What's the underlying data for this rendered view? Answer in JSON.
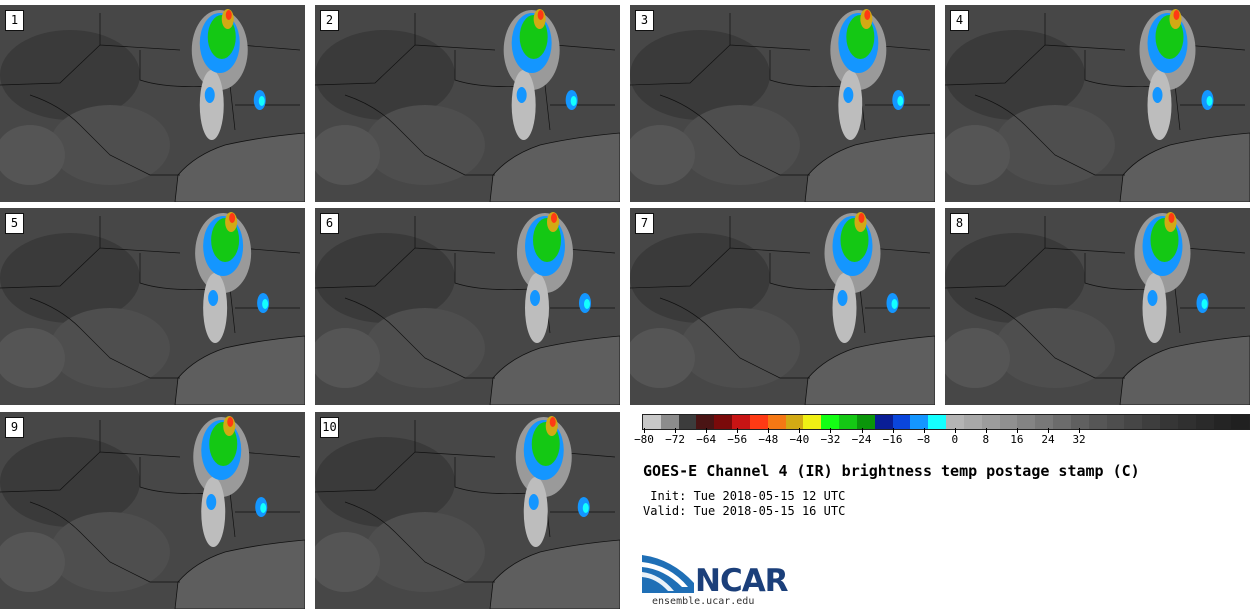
{
  "panels": [
    {
      "label": "1"
    },
    {
      "label": "2"
    },
    {
      "label": "3"
    },
    {
      "label": "4"
    },
    {
      "label": "5"
    },
    {
      "label": "6"
    },
    {
      "label": "7"
    },
    {
      "label": "8"
    },
    {
      "label": "9"
    },
    {
      "label": "10"
    }
  ],
  "colorbar": {
    "colors": [
      "#c8c8c8",
      "#8c8c8c",
      "#3c3c3c",
      "#4a1414",
      "#7a0a0a",
      "#c81414",
      "#ff3a14",
      "#f57814",
      "#d2aa14",
      "#f0f014",
      "#14ff14",
      "#14c814",
      "#0a960a",
      "#0a1e96",
      "#0a46dc",
      "#1496ff",
      "#14ffff",
      "#b4b4b4",
      "#a8a8a8",
      "#9c9c9c",
      "#909090",
      "#848484",
      "#787878",
      "#6c6c6c",
      "#606060",
      "#565656",
      "#4e4e4e",
      "#464646",
      "#3e3e3e",
      "#363636",
      "#303030",
      "#2a2a2a",
      "#242424",
      "#202020"
    ],
    "ticks": [
      "−80",
      "−72",
      "−64",
      "−56",
      "−48",
      "−40",
      "−32",
      "−24",
      "−16",
      "−8",
      "0",
      "8",
      "16",
      "24",
      "32"
    ],
    "min": -80,
    "max": 40
  },
  "title": "GOES-E Channel 4 (IR) brightness temp postage stamp (C)",
  "init": " Init: Tue 2018-05-15 12 UTC",
  "valid": "Valid: Tue 2018-05-15 16 UTC",
  "logo": {
    "text": "NCAR",
    "site": "ensemble.ucar.edu",
    "brand_color": "#1b3f7a"
  }
}
